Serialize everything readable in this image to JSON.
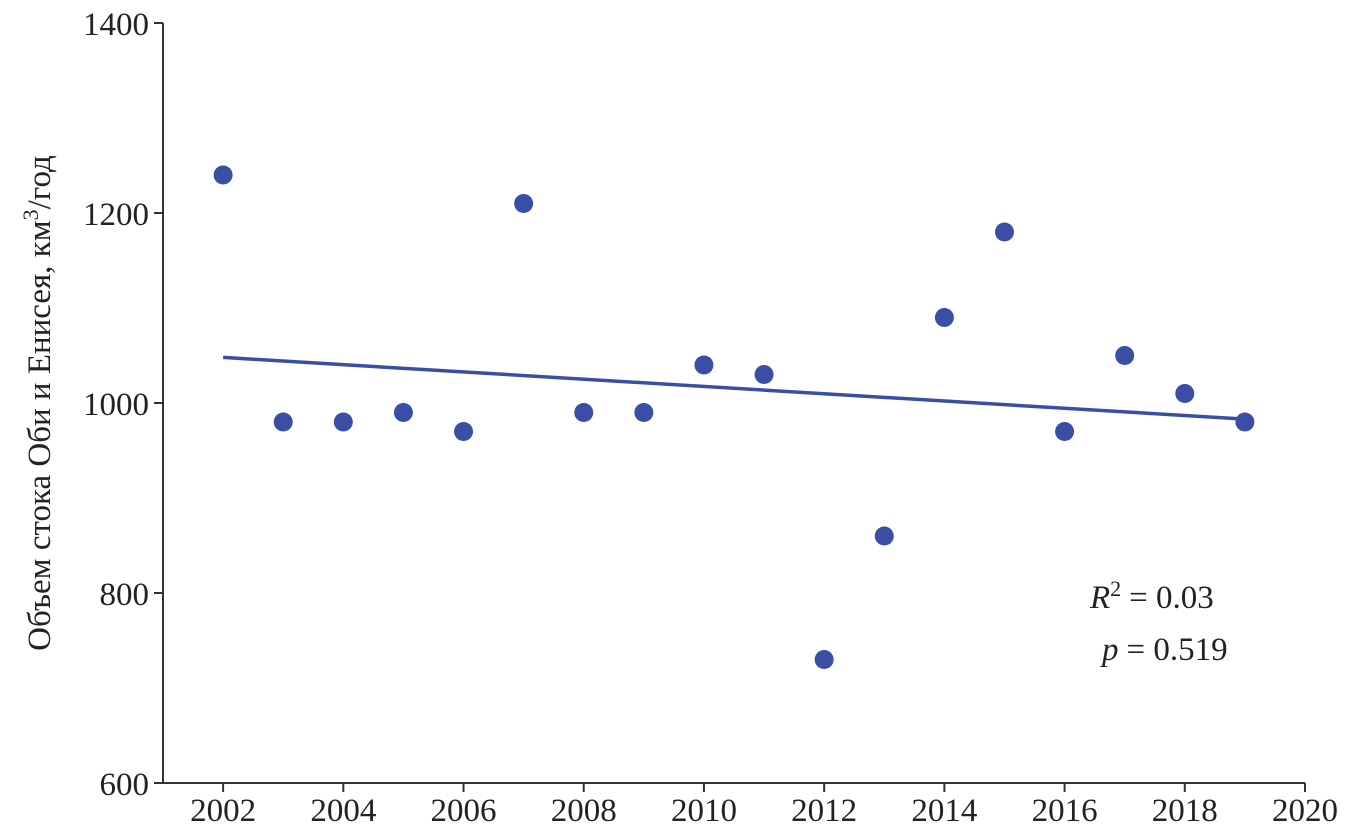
{
  "chart_data": {
    "type": "scatter",
    "ylabel": "Объем стока Оби и Енисея, км",
    "ylabel_sup": "3",
    "ylabel_end": "/год",
    "annotation": {
      "r_symbol": "R",
      "r_sup": "2",
      "r_text": "= 0.03",
      "p_symbol": "p",
      "p_text": "= 0.519"
    },
    "xlim": [
      2001,
      2020
    ],
    "xticks": [
      2002,
      2004,
      2006,
      2008,
      2010,
      2012,
      2014,
      2016,
      2018,
      2020
    ],
    "ylim": [
      600,
      1400
    ],
    "yticks": [
      600,
      800,
      1000,
      1200,
      1400
    ],
    "x": [
      2002,
      2003,
      2004,
      2005,
      2006,
      2007,
      2008,
      2009,
      2010,
      2011,
      2012,
      2013,
      2014,
      2015,
      2016,
      2017,
      2018,
      2019
    ],
    "values": [
      1240,
      980,
      980,
      990,
      970,
      1210,
      990,
      990,
      1040,
      1030,
      730,
      860,
      1090,
      1180,
      970,
      1050,
      1010,
      980
    ],
    "color": "#3a4ea6",
    "trend": {
      "x": [
        2002,
        2019
      ],
      "values": [
        1048,
        983
      ],
      "color": "#3a4ea6"
    }
  }
}
